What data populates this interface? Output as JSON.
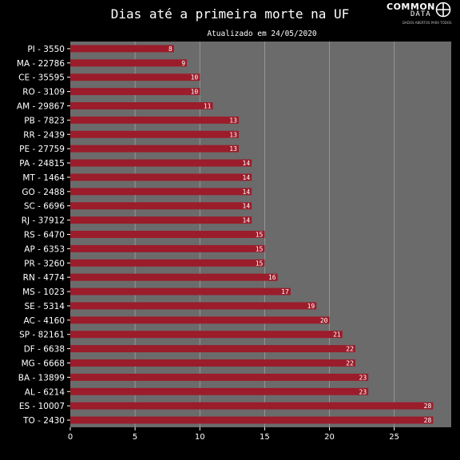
{
  "chart_data": {
    "type": "bar",
    "orientation": "horizontal",
    "title": "Dias até a primeira morte na UF",
    "subtitle": "Atualizado em 24/05/2020",
    "categories": [
      "PI - 3550",
      "MA - 22786",
      "CE - 35595",
      "RO - 3109",
      "AM - 29867",
      "PB - 7823",
      "RR - 2439",
      "PE - 27759",
      "PA - 24815",
      "MT - 1464",
      "GO - 2488",
      "SC - 6696",
      "RJ - 37912",
      "RS - 6470",
      "AP - 6353",
      "PR - 3260",
      "RN - 4774",
      "MS - 1023",
      "SE - 5314",
      "AC - 4160",
      "SP - 82161",
      "DF - 6638",
      "MG - 6668",
      "BA - 13899",
      "AL - 6214",
      "ES - 10007",
      "TO - 2430"
    ],
    "values": [
      8,
      9,
      10,
      10,
      11,
      13,
      13,
      13,
      14,
      14,
      14,
      14,
      14,
      15,
      15,
      15,
      16,
      17,
      19,
      20,
      21,
      22,
      22,
      23,
      23,
      28,
      28
    ],
    "xlim": [
      0,
      29.4
    ],
    "xticks": [
      0,
      5,
      10,
      15,
      20,
      25
    ],
    "grid": true,
    "colors": {
      "bar": "#9b1c2a",
      "plot_bg": "#6b6b6b",
      "page_bg": "#000000",
      "grid": "#a0a0a0",
      "text": "#ffffff"
    }
  },
  "logo": {
    "word": "COMMON",
    "sub": "DATA",
    "tagline": "DADOS ABERTOS PARA TODOS",
    "icon": "crosshair-circle-icon"
  }
}
